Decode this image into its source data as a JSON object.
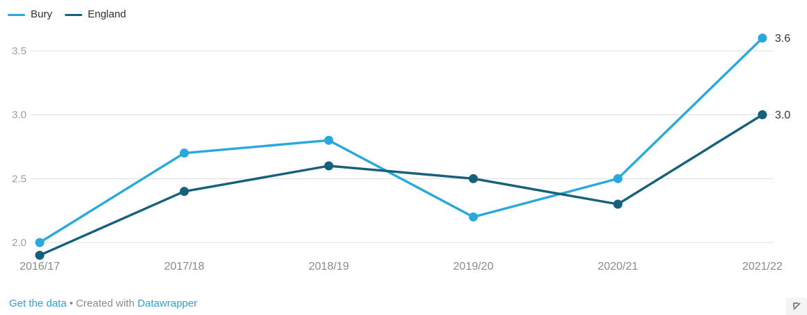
{
  "chart_data": {
    "type": "line",
    "title": "",
    "xlabel": "",
    "ylabel": "",
    "categories": [
      "2016/17",
      "2017/18",
      "2018/19",
      "2019/20",
      "2020/21",
      "2021/22"
    ],
    "series": [
      {
        "name": "Bury",
        "color": "#29a9db",
        "values": [
          2.0,
          2.7,
          2.8,
          2.2,
          2.5,
          3.6
        ],
        "end_label": "3.6"
      },
      {
        "name": "England",
        "color": "#15607a",
        "values": [
          1.9,
          2.4,
          2.6,
          2.5,
          2.3,
          3.0
        ],
        "end_label": "3.0"
      }
    ],
    "y_ticks": [
      2.0,
      2.5,
      3.0,
      3.5
    ],
    "ylim": [
      1.85,
      3.75
    ],
    "grid": true,
    "legend_position": "top-left",
    "draw_order_note": "England line drawn on top of Bury line"
  },
  "colors": {
    "grid": "#dcdcdc",
    "y_tick_text": "#9d9d9d",
    "x_tick_text": "#8a8a8a",
    "value_label_text": "#333333",
    "link": "#2ea0d8",
    "footer_text": "#8a8a8a"
  },
  "footer": {
    "get_data_label": "Get the data",
    "separator": "•",
    "created_with": "Created with",
    "datawrapper_label": "Datawrapper"
  },
  "icons": {
    "resize_arrow": "nw-arrow"
  }
}
